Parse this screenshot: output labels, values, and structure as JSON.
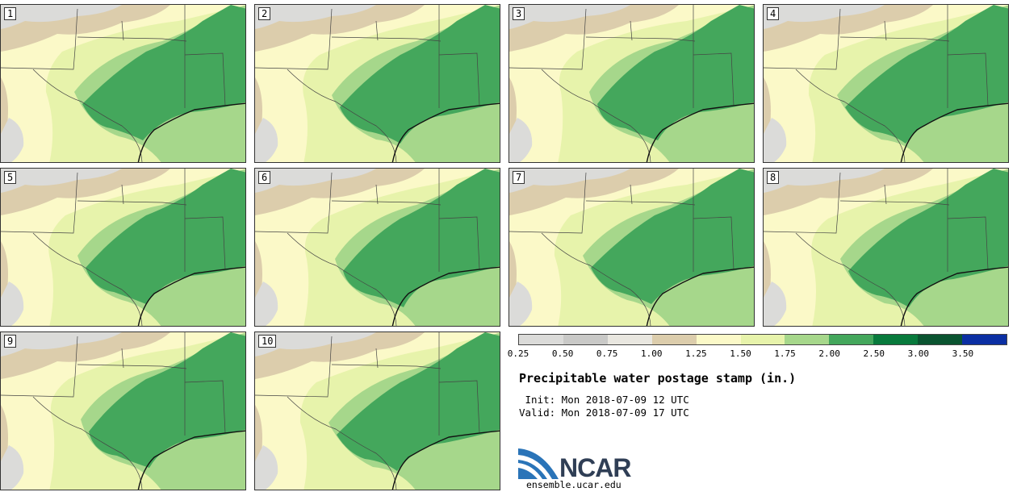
{
  "panels": [
    "1",
    "2",
    "3",
    "4",
    "5",
    "6",
    "7",
    "8",
    "9",
    "10"
  ],
  "colorbar": {
    "colors": [
      "#dbdbd9",
      "#c9c9c7",
      "#e9e7e0",
      "#dccdac",
      "#fbf9c8",
      "#e7f3ab",
      "#a6d78b",
      "#44a75c",
      "#087a3c",
      "#0a5430",
      "#0b2fa3"
    ],
    "ticks": [
      "0.25",
      "0.50",
      "0.75",
      "1.00",
      "1.25",
      "1.50",
      "1.75",
      "2.00",
      "2.50",
      "3.00",
      "3.50"
    ]
  },
  "title": "Precipitable water postage stamp (in.)",
  "init": " Init: Mon 2018-07-09 12 UTC",
  "valid": "Valid: Mon 2018-07-09 17 UTC",
  "logo": {
    "name": "NCAR",
    "url": "ensemble.ucar.edu"
  }
}
